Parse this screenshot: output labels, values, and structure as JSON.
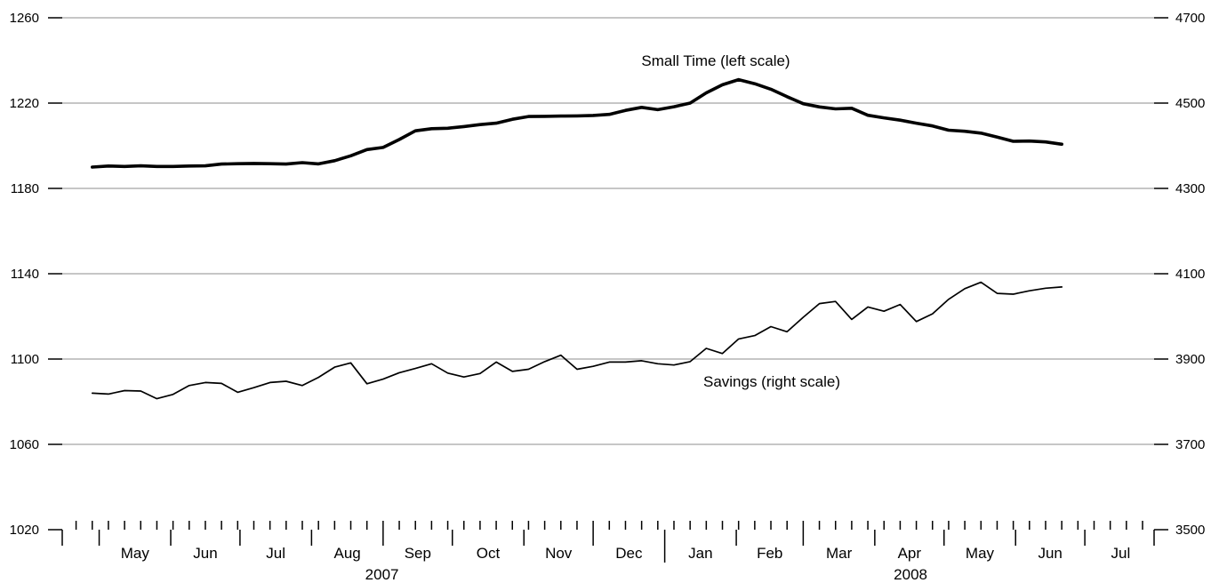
{
  "chart_data": {
    "type": "line",
    "title": "",
    "xlabel": "",
    "x": [
      "2007-04-28",
      "2007-05-05",
      "2007-05-12",
      "2007-05-19",
      "2007-05-26",
      "2007-06-02",
      "2007-06-09",
      "2007-06-16",
      "2007-06-23",
      "2007-06-30",
      "2007-07-07",
      "2007-07-14",
      "2007-07-21",
      "2007-07-28",
      "2007-08-04",
      "2007-08-11",
      "2007-08-18",
      "2007-08-25",
      "2007-09-01",
      "2007-09-08",
      "2007-09-15",
      "2007-09-22",
      "2007-09-29",
      "2007-10-06",
      "2007-10-13",
      "2007-10-20",
      "2007-10-27",
      "2007-11-03",
      "2007-11-10",
      "2007-11-17",
      "2007-11-24",
      "2007-12-01",
      "2007-12-08",
      "2007-12-15",
      "2007-12-22",
      "2007-12-29",
      "2008-01-05",
      "2008-01-12",
      "2008-01-19",
      "2008-01-26",
      "2008-02-02",
      "2008-02-09",
      "2008-02-16",
      "2008-02-23",
      "2008-03-01",
      "2008-03-08",
      "2008-03-15",
      "2008-03-22",
      "2008-03-29",
      "2008-04-05",
      "2008-04-12",
      "2008-04-19",
      "2008-04-26",
      "2008-05-03",
      "2008-05-10",
      "2008-05-17",
      "2008-05-24",
      "2008-05-31",
      "2008-06-07",
      "2008-06-14",
      "2008-06-21"
    ],
    "series": [
      {
        "name": "Small Time (left scale)",
        "axis": "left",
        "values": [
          1190,
          1190.5,
          1190.3,
          1190.6,
          1190.3,
          1190.3,
          1190.5,
          1190.6,
          1191.4,
          1191.6,
          1191.7,
          1191.6,
          1191.4,
          1192.1,
          1191.5,
          1193,
          1195.3,
          1198.2,
          1199.2,
          1202.9,
          1207,
          1208,
          1208.2,
          1209,
          1209.9,
          1210.6,
          1212.4,
          1213.7,
          1213.8,
          1213.9,
          1214,
          1214.2,
          1214.7,
          1216.6,
          1218,
          1216.9,
          1218.3,
          1220,
          1224.8,
          1228.6,
          1231,
          1229.1,
          1226.5,
          1223,
          1219.7,
          1218.2,
          1217.3,
          1217.6,
          1214.3,
          1213.1,
          1212,
          1210.6,
          1209.3,
          1207.3,
          1206.8,
          1205.9,
          1204.1,
          1202.1,
          1202.2,
          1201.8,
          1200.7
        ]
      },
      {
        "name": "Savings (right scale)",
        "axis": "right",
        "values": [
          3820,
          3818,
          3826,
          3825,
          3807,
          3817,
          3838,
          3845,
          3843,
          3822,
          3833,
          3845,
          3848,
          3838,
          3857,
          3881,
          3891,
          3842,
          3853,
          3868,
          3878,
          3889,
          3867,
          3858,
          3866,
          3893,
          3871,
          3876,
          3894,
          3909,
          3876,
          3883,
          3893,
          3893,
          3896,
          3889,
          3886,
          3894,
          3925,
          3913,
          3947,
          3955,
          3976,
          3964,
          3998,
          4030,
          4035,
          3993,
          4022,
          4012,
          4028,
          3988,
          4006,
          4040,
          4065,
          4080,
          4054,
          4052,
          4060,
          4066,
          4069
        ]
      }
    ],
    "ylim_left": [
      1020,
      1260
    ],
    "ylim_right": [
      3500,
      4700
    ],
    "yticks_left": [
      "1020",
      "1060",
      "1100",
      "1140",
      "1180",
      "1220",
      "1260"
    ],
    "yticks_right": [
      "3500",
      "3700",
      "3900",
      "4100",
      "4300",
      "4500",
      "4700"
    ],
    "month_labels": [
      "May",
      "Jun",
      "Jul",
      "Aug",
      "Sep",
      "Oct",
      "Nov",
      "Dec",
      "Jan",
      "Feb",
      "Mar",
      "Apr",
      "May",
      "Jun",
      "Jul"
    ],
    "year_labels": [
      "2007",
      "2008"
    ],
    "grid": true,
    "legend": "inline labels"
  }
}
